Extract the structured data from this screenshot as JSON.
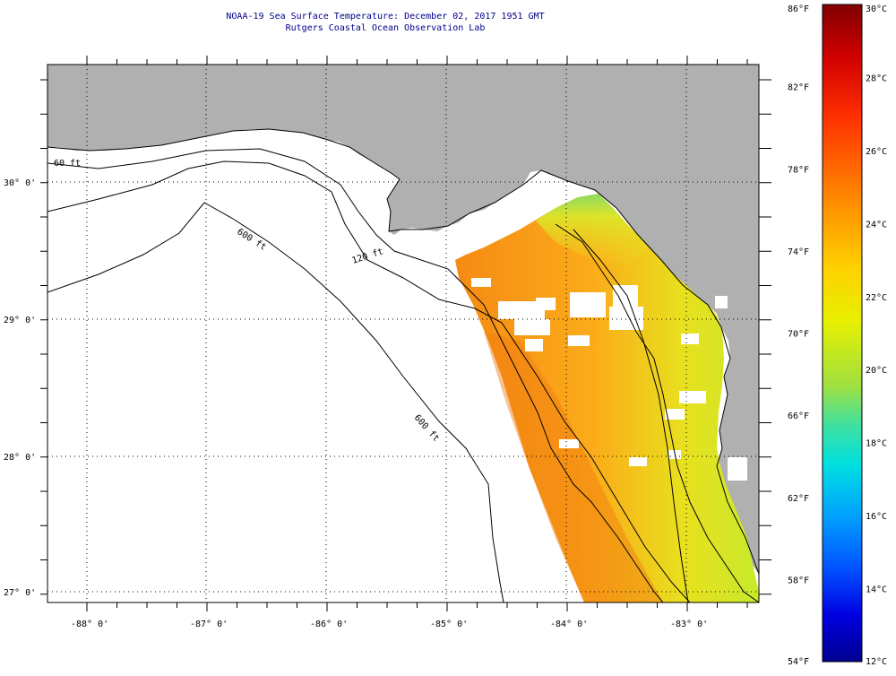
{
  "header": {
    "title_line1": "NOAA-19 Sea Surface Temperature:  December 02, 2017 1951 GMT",
    "title_line2": "Rutgers Coastal Ocean Observation Lab"
  },
  "map": {
    "lon_labels": [
      "-88° 0'",
      "-87° 0'",
      "-86° 0'",
      "-85° 0'",
      "-84° 0'",
      "-83° 0'"
    ],
    "lat_labels": [
      "30° 0'",
      "29° 0'",
      "28° 0'",
      "27° 0'"
    ],
    "isobaths": [
      "60 ft",
      "120 ft",
      "600 ft",
      "600 ft"
    ],
    "colors": {
      "land": "#b0b0b0",
      "ocean": "#ffffff",
      "grid": "#000000"
    }
  },
  "colorbar": {
    "fahrenheit_labels": [
      "86°F",
      "82°F",
      "78°F",
      "74°F",
      "70°F",
      "66°F",
      "62°F",
      "58°F",
      "54°F"
    ],
    "celsius_labels": [
      "30°C",
      "28°C",
      "26°C",
      "24°C",
      "22°C",
      "20°C",
      "18°C",
      "16°C",
      "14°C",
      "12°C"
    ],
    "range_c": [
      12,
      30
    ],
    "range_f": [
      54,
      86
    ]
  }
}
